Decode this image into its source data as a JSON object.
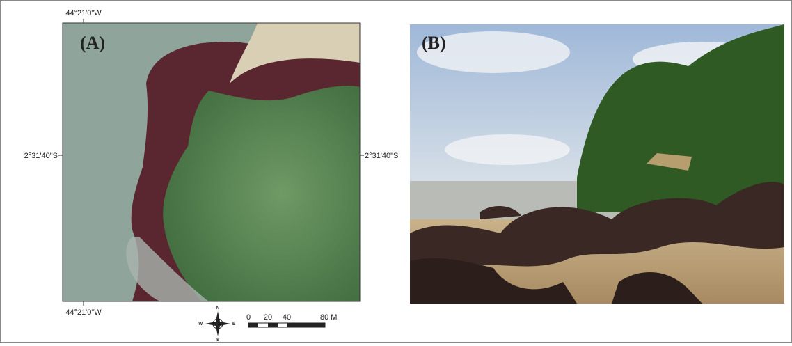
{
  "panel_a": {
    "label": "(A)",
    "coord_top": "44°21'0\"W",
    "coord_bottom": "44°21'0\"W",
    "coord_left": "2°31'40\"S",
    "coord_right": "2°31'40\"S",
    "compass": {
      "n": "N",
      "s": "S",
      "e": "E",
      "w": "W"
    },
    "scale_bar": [
      "0",
      "20",
      "40",
      "80 M"
    ]
  },
  "panel_b": {
    "label": "(B)"
  }
}
